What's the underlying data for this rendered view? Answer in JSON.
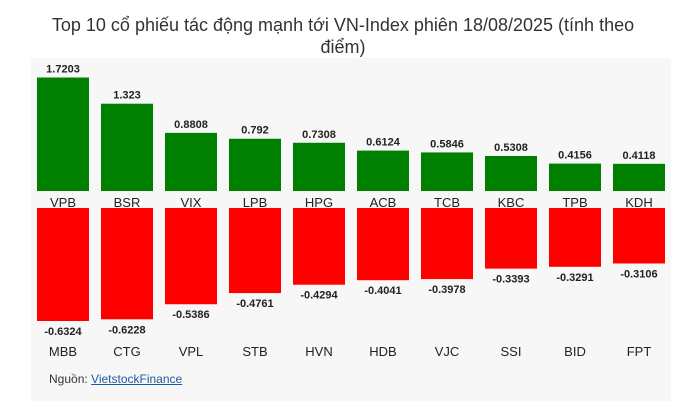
{
  "title": "Top 10 cổ phiếu tác động mạnh tới VN-Index phiên 18/08/2025 (tính theo điểm)",
  "source_label": "Nguồn:",
  "source_link": "VietstockFinance",
  "colors": {
    "positive": "#008000",
    "negative": "#ff0000",
    "background": "#f7f7f7"
  },
  "chart_data": [
    {
      "type": "bar",
      "categories": [
        "VPB",
        "BSR",
        "VIX",
        "LPB",
        "HPG",
        "ACB",
        "TCB",
        "KBC",
        "TPB",
        "KDH"
      ],
      "values": [
        1.7203,
        1.323,
        0.8808,
        0.792,
        0.7308,
        0.6124,
        0.5846,
        0.5308,
        0.4156,
        0.4118
      ],
      "value_labels": [
        "1.7203",
        "1.323",
        "0.8808",
        "0.792",
        "0.7308",
        "0.6124",
        "0.5846",
        "0.5308",
        "0.4156",
        "0.4118"
      ],
      "color": "#008000"
    },
    {
      "type": "bar",
      "categories": [
        "MBB",
        "CTG",
        "VPL",
        "STB",
        "HVN",
        "HDB",
        "VJC",
        "SSI",
        "BID",
        "FPT"
      ],
      "values": [
        -0.6324,
        -0.6228,
        -0.5386,
        -0.4761,
        -0.4294,
        -0.4041,
        -0.3978,
        -0.3393,
        -0.3291,
        -0.3106
      ],
      "value_labels": [
        "-0.6324",
        "-0.6228",
        "-0.5386",
        "-0.4761",
        "-0.4294",
        "-0.4041",
        "-0.3978",
        "-0.3393",
        "-0.3291",
        "-0.3106"
      ],
      "color": "#ff0000"
    }
  ]
}
